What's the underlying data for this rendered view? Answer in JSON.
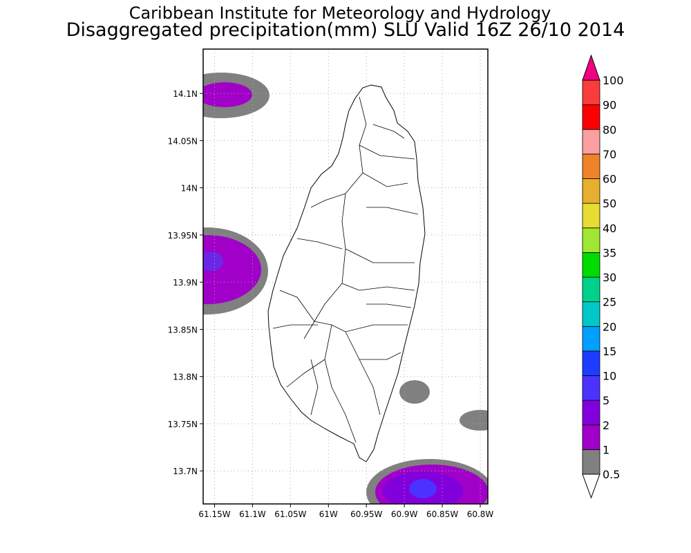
{
  "title_line1": "Caribbean Institute for Meteorology and Hydrology",
  "title_line2": "Disaggregated precipitation(mm) SLU Valid 16Z 26/10 2014",
  "map": {
    "lon_ticks": [
      {
        "value": -61.15,
        "label": "61.15W"
      },
      {
        "value": -61.1,
        "label": "61.1W"
      },
      {
        "value": -61.05,
        "label": "61.05W"
      },
      {
        "value": -61.0,
        "label": "61W"
      },
      {
        "value": -60.95,
        "label": "60.95W"
      },
      {
        "value": -60.9,
        "label": "60.9W"
      },
      {
        "value": -60.85,
        "label": "60.85W"
      },
      {
        "value": -60.8,
        "label": "60.8W"
      }
    ],
    "lat_ticks": [
      {
        "value": 14.1,
        "label": "14.1N"
      },
      {
        "value": 14.05,
        "label": "14.05N"
      },
      {
        "value": 14.0,
        "label": "14N"
      },
      {
        "value": 13.95,
        "label": "13.95N"
      },
      {
        "value": 13.9,
        "label": "13.9N"
      },
      {
        "value": 13.85,
        "label": "13.85N"
      },
      {
        "value": 13.8,
        "label": "13.8N"
      },
      {
        "value": 13.75,
        "label": "13.75N"
      },
      {
        "value": 13.7,
        "label": "13.7N"
      }
    ],
    "lon_range": [
      -61.165,
      -60.79
    ],
    "lat_range": [
      13.665,
      14.147
    ]
  },
  "colorbar": {
    "labels": [
      "0.5",
      "1",
      "2",
      "5",
      "10",
      "15",
      "20",
      "25",
      "30",
      "35",
      "40",
      "50",
      "60",
      "70",
      "80",
      "90",
      "100"
    ],
    "colors": [
      "#808080",
      "#a000c8",
      "#8200dc",
      "#4b32ff",
      "#1e3cff",
      "#00a0ff",
      "#00c8c8",
      "#00d28c",
      "#00dc00",
      "#a0e632",
      "#e6dc32",
      "#e6af2d",
      "#f08228",
      "#faa0a0",
      "#ff0000",
      "#fa3c3c"
    ],
    "over_color": "#f00082",
    "under_color": "#ffffff"
  }
}
